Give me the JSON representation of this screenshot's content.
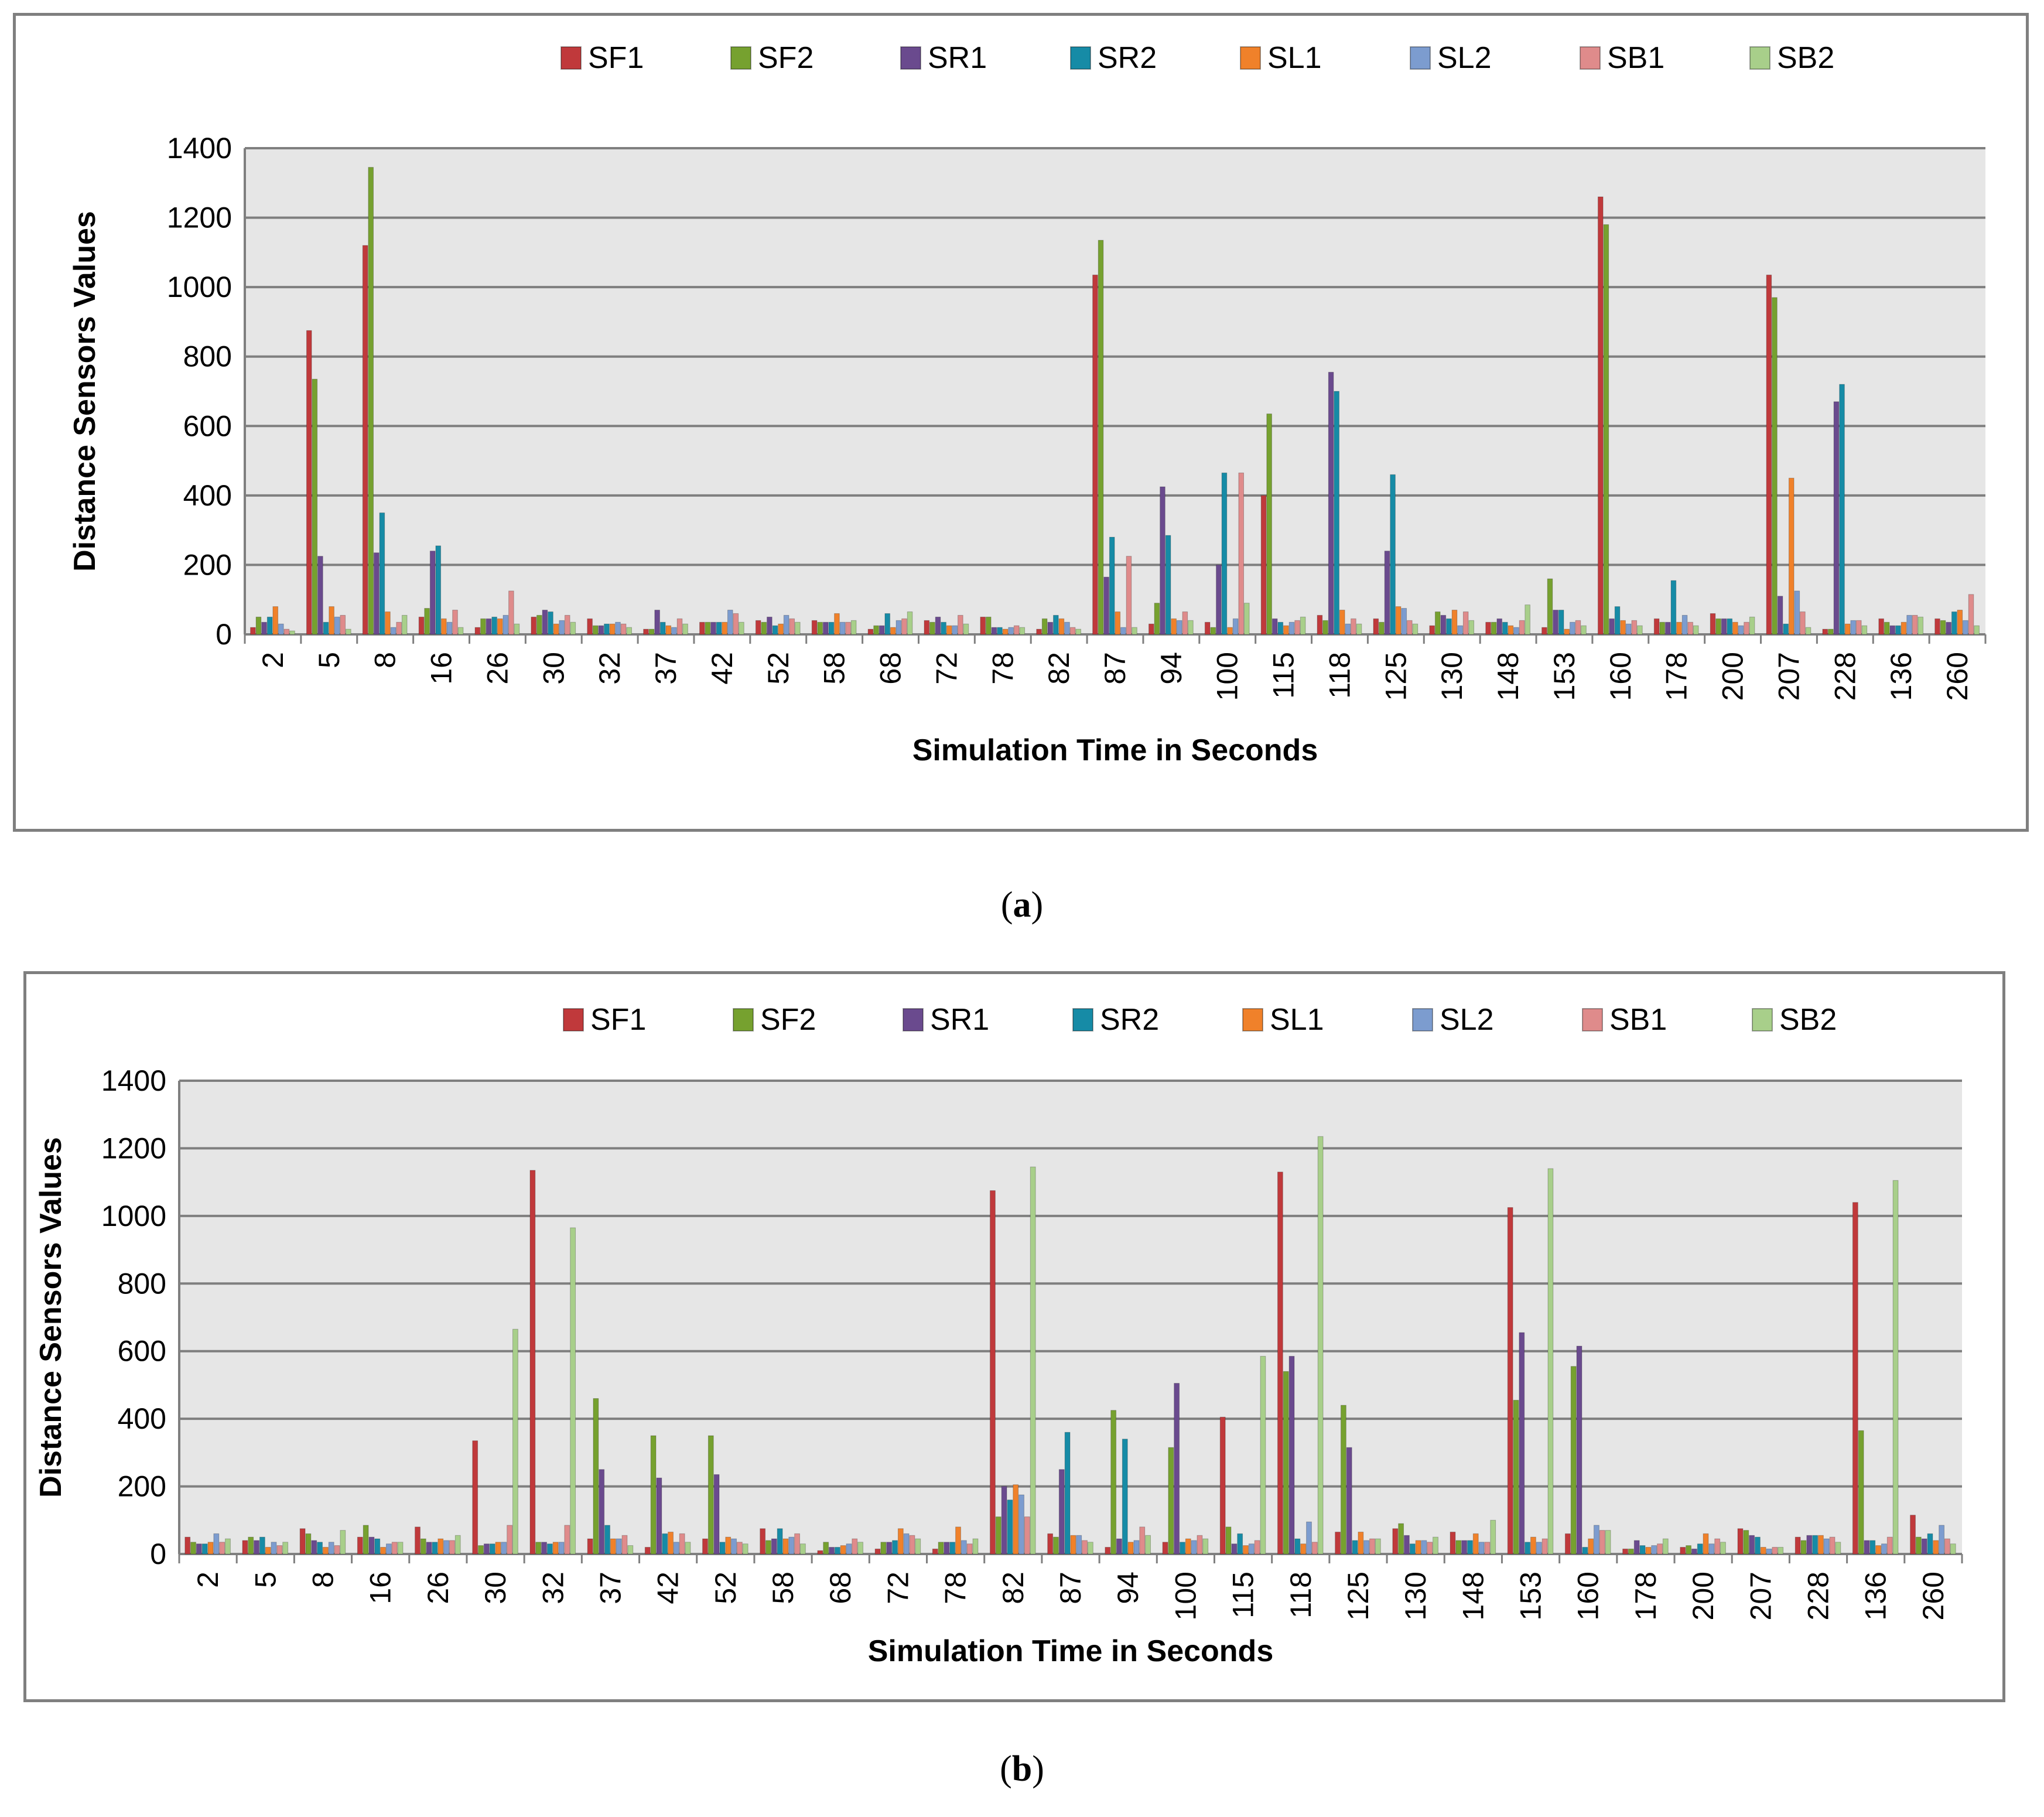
{
  "legend": [
    "SF1",
    "SF2",
    "SR1",
    "SR2",
    "SL1",
    "SL2",
    "SB1",
    "SB2"
  ],
  "colors": {
    "SF1": "#c0393b",
    "SF2": "#76a12f",
    "SR1": "#6a4a8e",
    "SR2": "#168ba6",
    "SL1": "#f0812a",
    "SL2": "#7c9ccf",
    "SB1": "#df8b8b",
    "SB2": "#a8cf8a",
    "plot_bg": "#e6e6e6",
    "grid": "#7f7f7f"
  },
  "captions": {
    "a": "a",
    "b": "b"
  },
  "chart_data": [
    {
      "type": "bar",
      "id": "a",
      "xlabel": "Simulation Time in Seconds",
      "ylabel": "Distance Sensors Values",
      "ylim": [
        0,
        1400
      ],
      "yticks": [
        0,
        200,
        400,
        600,
        800,
        1000,
        1200,
        1400
      ],
      "grid": true,
      "legend_position": "top",
      "categories": [
        "2",
        "5",
        "8",
        "16",
        "26",
        "30",
        "32",
        "37",
        "42",
        "52",
        "58",
        "68",
        "72",
        "78",
        "82",
        "87",
        "94",
        "100",
        "115",
        "118",
        "125",
        "130",
        "148",
        "153",
        "160",
        "178",
        "200",
        "207",
        "228",
        "136",
        "260"
      ],
      "series": [
        {
          "name": "SF1",
          "values": [
            20,
            875,
            1120,
            50,
            20,
            50,
            45,
            15,
            35,
            40,
            40,
            15,
            40,
            50,
            15,
            1035,
            30,
            35,
            400,
            55,
            45,
            25,
            35,
            20,
            1260,
            45,
            60,
            1035,
            15,
            45,
            45
          ]
        },
        {
          "name": "SF2",
          "values": [
            50,
            735,
            1345,
            75,
            45,
            55,
            25,
            15,
            35,
            35,
            35,
            25,
            35,
            50,
            45,
            1135,
            90,
            20,
            635,
            40,
            35,
            65,
            35,
            160,
            1180,
            35,
            45,
            970,
            15,
            35,
            40
          ]
        },
        {
          "name": "SR1",
          "values": [
            35,
            225,
            235,
            240,
            45,
            70,
            25,
            70,
            35,
            50,
            35,
            25,
            50,
            20,
            35,
            165,
            425,
            200,
            45,
            755,
            240,
            55,
            45,
            70,
            45,
            35,
            45,
            110,
            670,
            25,
            35
          ]
        },
        {
          "name": "SR2",
          "values": [
            50,
            35,
            350,
            255,
            50,
            65,
            30,
            35,
            35,
            25,
            35,
            60,
            35,
            20,
            55,
            280,
            285,
            465,
            35,
            700,
            460,
            45,
            35,
            70,
            80,
            155,
            45,
            30,
            720,
            25,
            65
          ]
        },
        {
          "name": "SL1",
          "values": [
            80,
            80,
            65,
            45,
            45,
            30,
            30,
            25,
            35,
            30,
            60,
            20,
            25,
            15,
            45,
            65,
            45,
            20,
            25,
            70,
            80,
            70,
            25,
            15,
            40,
            35,
            35,
            450,
            30,
            35,
            70
          ]
        },
        {
          "name": "SL2",
          "values": [
            30,
            50,
            20,
            35,
            55,
            40,
            35,
            20,
            70,
            55,
            35,
            40,
            25,
            20,
            35,
            20,
            40,
            45,
            35,
            30,
            75,
            25,
            20,
            35,
            30,
            55,
            25,
            125,
            40,
            55,
            40
          ]
        },
        {
          "name": "SB1",
          "values": [
            15,
            55,
            35,
            70,
            125,
            55,
            30,
            45,
            60,
            45,
            35,
            45,
            55,
            25,
            20,
            225,
            65,
            465,
            40,
            45,
            40,
            65,
            40,
            40,
            40,
            35,
            35,
            65,
            40,
            55,
            115
          ]
        },
        {
          "name": "SB2",
          "values": [
            10,
            15,
            55,
            20,
            30,
            35,
            20,
            30,
            35,
            35,
            40,
            65,
            30,
            20,
            15,
            20,
            40,
            90,
            50,
            30,
            30,
            40,
            85,
            25,
            25,
            25,
            50,
            20,
            25,
            50,
            25
          ]
        }
      ]
    },
    {
      "type": "bar",
      "id": "b",
      "xlabel": "Simulation Time in Seconds",
      "ylabel": "Distance Sensors Values",
      "ylim": [
        0,
        1400
      ],
      "yticks": [
        0,
        200,
        400,
        600,
        800,
        1000,
        1200,
        1400
      ],
      "grid": true,
      "legend_position": "top",
      "categories": [
        "2",
        "5",
        "8",
        "16",
        "26",
        "30",
        "32",
        "37",
        "42",
        "52",
        "58",
        "68",
        "72",
        "78",
        "82",
        "87",
        "94",
        "100",
        "115",
        "118",
        "125",
        "130",
        "148",
        "153",
        "160",
        "178",
        "200",
        "207",
        "228",
        "136",
        "260"
      ],
      "series": [
        {
          "name": "SF1",
          "values": [
            50,
            40,
            75,
            50,
            80,
            335,
            1135,
            45,
            20,
            45,
            75,
            10,
            15,
            15,
            1075,
            60,
            20,
            35,
            405,
            1130,
            65,
            75,
            65,
            1025,
            60,
            15,
            20,
            75,
            50,
            1040,
            115
          ]
        },
        {
          "name": "SF2",
          "values": [
            35,
            50,
            60,
            85,
            45,
            25,
            35,
            460,
            350,
            350,
            40,
            35,
            35,
            35,
            110,
            50,
            425,
            315,
            80,
            540,
            440,
            90,
            40,
            455,
            555,
            15,
            25,
            70,
            40,
            365,
            50
          ]
        },
        {
          "name": "SR1",
          "values": [
            30,
            40,
            40,
            50,
            35,
            30,
            35,
            250,
            225,
            235,
            45,
            20,
            35,
            35,
            200,
            250,
            45,
            505,
            30,
            585,
            315,
            55,
            40,
            655,
            615,
            40,
            15,
            55,
            55,
            40,
            45
          ]
        },
        {
          "name": "SR2",
          "values": [
            30,
            50,
            35,
            45,
            35,
            30,
            30,
            85,
            60,
            35,
            75,
            20,
            40,
            35,
            160,
            360,
            340,
            35,
            60,
            45,
            40,
            30,
            40,
            35,
            20,
            25,
            30,
            50,
            55,
            40,
            60
          ]
        },
        {
          "name": "SL1",
          "values": [
            35,
            20,
            20,
            20,
            45,
            35,
            35,
            45,
            65,
            50,
            45,
            25,
            75,
            80,
            205,
            55,
            35,
            45,
            25,
            30,
            65,
            40,
            60,
            50,
            45,
            20,
            60,
            20,
            55,
            25,
            40
          ]
        },
        {
          "name": "SL2",
          "values": [
            60,
            35,
            35,
            30,
            40,
            35,
            35,
            45,
            35,
            45,
            50,
            30,
            60,
            40,
            175,
            55,
            40,
            40,
            30,
            95,
            40,
            40,
            35,
            35,
            85,
            25,
            30,
            15,
            45,
            30,
            85
          ]
        },
        {
          "name": "SB1",
          "values": [
            35,
            25,
            25,
            35,
            40,
            85,
            85,
            55,
            60,
            35,
            60,
            45,
            55,
            30,
            110,
            40,
            80,
            55,
            40,
            35,
            45,
            35,
            35,
            45,
            70,
            30,
            45,
            20,
            50,
            50,
            45
          ]
        },
        {
          "name": "SB2",
          "values": [
            45,
            35,
            70,
            35,
            55,
            665,
            965,
            25,
            35,
            30,
            30,
            35,
            45,
            45,
            1145,
            35,
            55,
            45,
            585,
            1235,
            45,
            50,
            100,
            1140,
            70,
            45,
            35,
            20,
            35,
            1105,
            30
          ]
        }
      ]
    }
  ]
}
